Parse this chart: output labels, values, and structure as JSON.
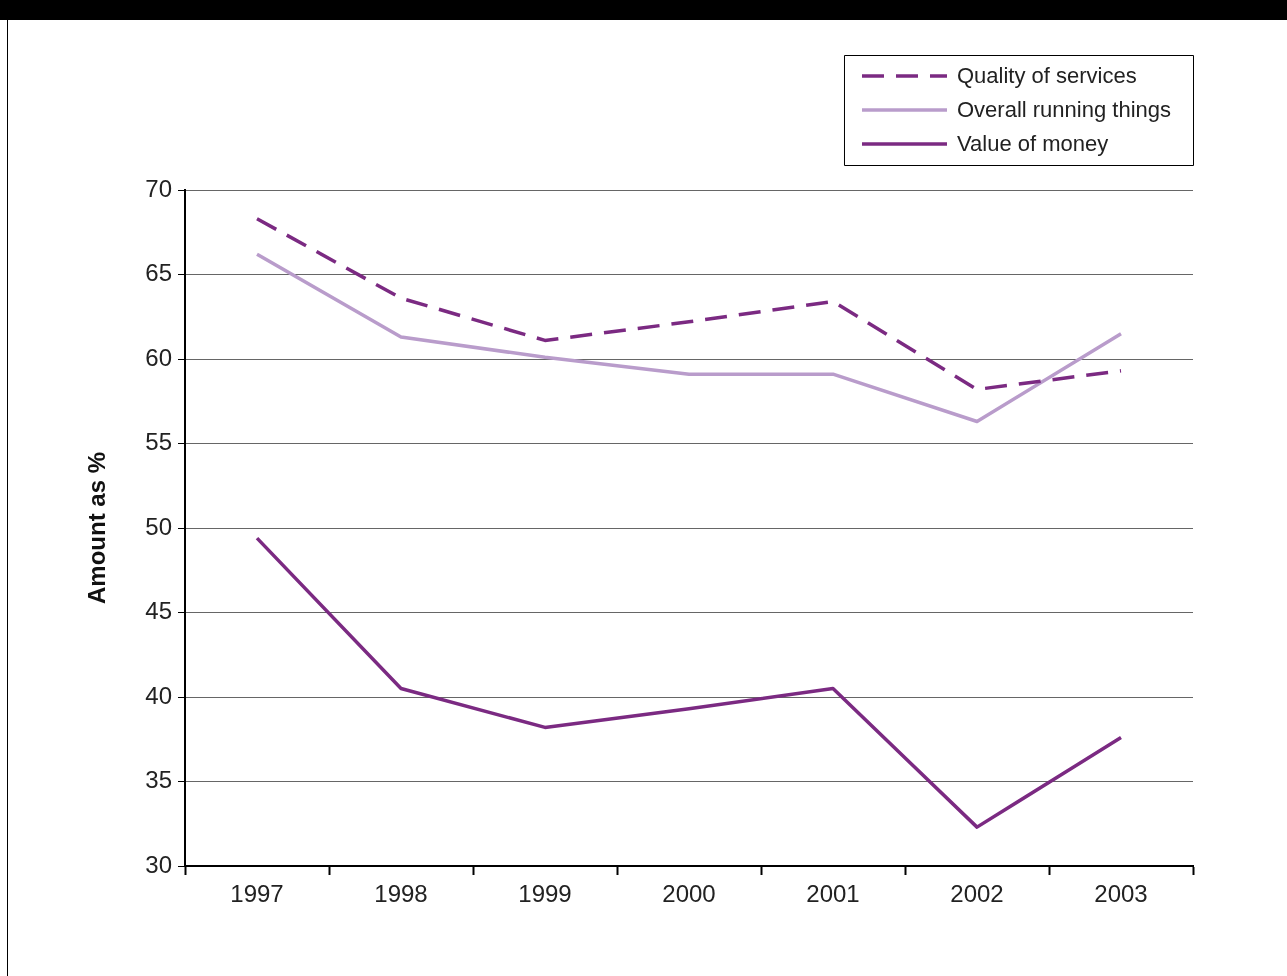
{
  "chart_data": {
    "type": "line",
    "ylabel": "Amount as %",
    "categories": [
      "1997",
      "1998",
      "1999",
      "2000",
      "2001",
      "2002",
      "2003"
    ],
    "series": [
      {
        "name": "Quality of services",
        "color": "#7b2a82",
        "line_style": "dashed",
        "values": [
          68.3,
          63.6,
          61.1,
          62.2,
          63.4,
          58.2,
          59.3
        ]
      },
      {
        "name": "Overall running things",
        "color": "#b99ccb",
        "line_style": "solid",
        "values": [
          66.2,
          61.3,
          60.1,
          59.1,
          59.1,
          56.3,
          61.5
        ]
      },
      {
        "name": "Value of money",
        "color": "#7b2a82",
        "line_style": "solid",
        "values": [
          49.4,
          40.5,
          38.2,
          39.3,
          40.5,
          32.3,
          37.6
        ]
      }
    ],
    "ylim": [
      30,
      70
    ],
    "yticks": [
      30,
      35,
      40,
      45,
      50,
      55,
      60,
      65,
      70
    ],
    "grid": "y",
    "legend": "top right",
    "marker": "none"
  }
}
